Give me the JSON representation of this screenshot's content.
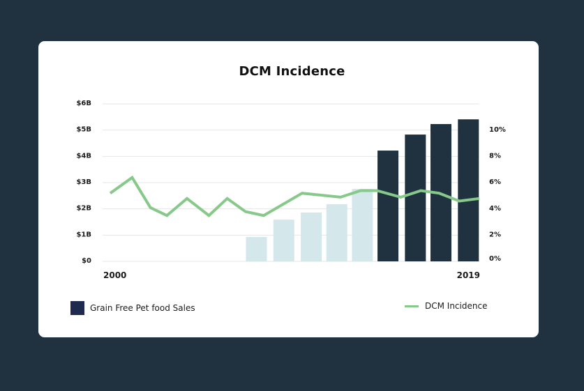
{
  "chart_data": {
    "type": "bar",
    "title": "DCM Incidence",
    "xlabel": "",
    "x_tick_labels": [
      "2000",
      "2019"
    ],
    "x_range": [
      2000,
      2019
    ],
    "y_left": {
      "label": "Grain Free Pet food Sales",
      "ylim": [
        0,
        6
      ],
      "ticks": [
        "$0",
        "$1B",
        "$2B",
        "$3B",
        "$4B",
        "$5B",
        "$6B"
      ],
      "tick_values": [
        0,
        1,
        2,
        3,
        4,
        5,
        6
      ]
    },
    "y_right": {
      "label": "DCM Incidence",
      "ylim": [
        0,
        12
      ],
      "ticks": [
        "0%",
        "2%",
        "4%",
        "6%",
        "8%",
        "10%"
      ],
      "tick_values": [
        0,
        2,
        4,
        6,
        8,
        10
      ]
    },
    "grid": true,
    "legend_placement": "bottom",
    "series": [
      {
        "name": "Grain Free Pet food Sales",
        "type": "bar",
        "axis": "left",
        "unit": "$B",
        "x": [
          2008,
          2009.5,
          2011,
          2012.4,
          2013.8,
          2015.2,
          2016.7,
          2018.1,
          2019.6
        ],
        "values": [
          0.93,
          1.59,
          1.86,
          2.18,
          2.76,
          4.22,
          4.83,
          5.23,
          5.41
        ],
        "styles": [
          "light",
          "light",
          "light",
          "light",
          "light",
          "dark",
          "dark",
          "dark",
          "dark"
        ]
      },
      {
        "name": "DCM Incidence",
        "type": "line",
        "axis": "right",
        "unit": "%",
        "x": [
          2000.0,
          2001.2,
          2002.2,
          2003.1,
          2004.2,
          2005.4,
          2006.4,
          2007.4,
          2008.4,
          2010.5,
          2012.6,
          2013.7,
          2014.6,
          2015.9,
          2017.0,
          2018.0,
          2019.1,
          2020.2
        ],
        "values": [
          5.2,
          6.4,
          4.1,
          3.5,
          4.8,
          3.5,
          4.8,
          3.8,
          3.5,
          5.2,
          4.9,
          5.4,
          5.4,
          4.9,
          5.4,
          5.2,
          4.6,
          4.8
        ]
      }
    ]
  },
  "colors": {
    "background": "#20323f",
    "card": "#ffffff",
    "bar_light": "#d4e8ec",
    "bar_dark": "#20323f",
    "line": "#86c98a",
    "legend_bar": "#1f2a4f",
    "grid": "#e6e6e6"
  },
  "legend": {
    "bar_label": "Grain Free Pet food Sales",
    "line_label": "DCM Incidence"
  }
}
